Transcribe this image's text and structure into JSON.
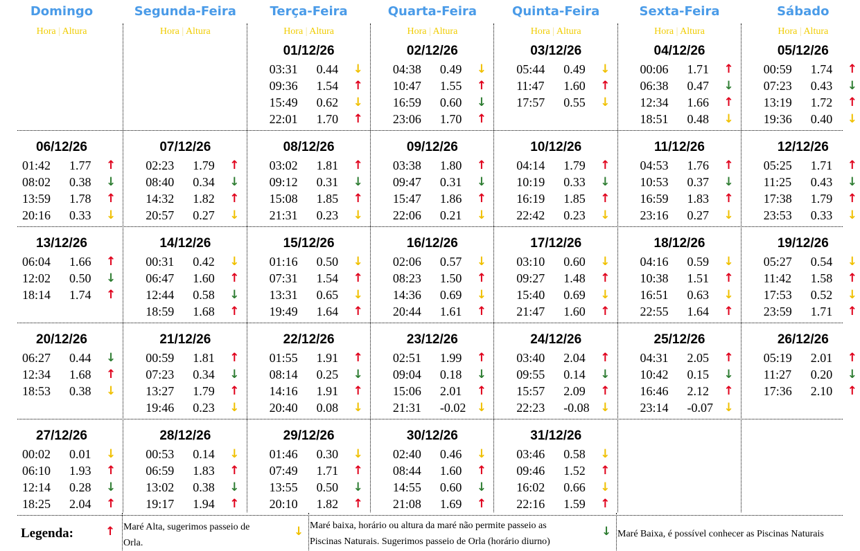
{
  "colors": {
    "header": "#4a9be8",
    "subheader": "#f0cc00",
    "up": "#e0001b",
    "down_yellow": "#f0c000",
    "down_green": "#2e7d32"
  },
  "header": {
    "days": [
      "Domingo",
      "Segunda-Feira",
      "Terça-Feira",
      "Quarta-Feira",
      "Quinta-Feira",
      "Sexta-Feira",
      "Sábado"
    ],
    "hora": "Hora",
    "altura": "Altura",
    "separator": "|"
  },
  "icons": {
    "u": "arrow-up-red-icon",
    "y": "arrow-down-yellow-icon",
    "g": "arrow-down-green-icon"
  },
  "weeks": [
    [
      null,
      null,
      {
        "date": "01/12/26",
        "tides": [
          [
            "03:31",
            "0.44",
            "y"
          ],
          [
            "09:36",
            "1.54",
            "u"
          ],
          [
            "15:49",
            "0.62",
            "y"
          ],
          [
            "22:01",
            "1.70",
            "u"
          ]
        ]
      },
      {
        "date": "02/12/26",
        "tides": [
          [
            "04:38",
            "0.49",
            "y"
          ],
          [
            "10:47",
            "1.55",
            "u"
          ],
          [
            "16:59",
            "0.60",
            "g"
          ],
          [
            "23:06",
            "1.70",
            "u"
          ]
        ]
      },
      {
        "date": "03/12/26",
        "tides": [
          [
            "05:44",
            "0.49",
            "y"
          ],
          [
            "11:47",
            "1.60",
            "u"
          ],
          [
            "17:57",
            "0.55",
            "y"
          ]
        ]
      },
      {
        "date": "04/12/26",
        "tides": [
          [
            "00:06",
            "1.71",
            "u"
          ],
          [
            "06:38",
            "0.47",
            "g"
          ],
          [
            "12:34",
            "1.66",
            "u"
          ],
          [
            "18:51",
            "0.48",
            "y"
          ]
        ]
      },
      {
        "date": "05/12/26",
        "tides": [
          [
            "00:59",
            "1.74",
            "u"
          ],
          [
            "07:23",
            "0.43",
            "g"
          ],
          [
            "13:19",
            "1.72",
            "u"
          ],
          [
            "19:36",
            "0.40",
            "y"
          ]
        ]
      }
    ],
    [
      {
        "date": "06/12/26",
        "tides": [
          [
            "01:42",
            "1.77",
            "u"
          ],
          [
            "08:02",
            "0.38",
            "g"
          ],
          [
            "13:59",
            "1.78",
            "u"
          ],
          [
            "20:16",
            "0.33",
            "y"
          ]
        ]
      },
      {
        "date": "07/12/26",
        "tides": [
          [
            "02:23",
            "1.79",
            "u"
          ],
          [
            "08:40",
            "0.34",
            "g"
          ],
          [
            "14:32",
            "1.82",
            "u"
          ],
          [
            "20:57",
            "0.27",
            "y"
          ]
        ]
      },
      {
        "date": "08/12/26",
        "tides": [
          [
            "03:02",
            "1.81",
            "u"
          ],
          [
            "09:12",
            "0.31",
            "g"
          ],
          [
            "15:08",
            "1.85",
            "u"
          ],
          [
            "21:31",
            "0.23",
            "y"
          ]
        ]
      },
      {
        "date": "09/12/26",
        "tides": [
          [
            "03:38",
            "1.80",
            "u"
          ],
          [
            "09:47",
            "0.31",
            "g"
          ],
          [
            "15:47",
            "1.86",
            "u"
          ],
          [
            "22:06",
            "0.21",
            "y"
          ]
        ]
      },
      {
        "date": "10/12/26",
        "tides": [
          [
            "04:14",
            "1.79",
            "u"
          ],
          [
            "10:19",
            "0.33",
            "g"
          ],
          [
            "16:19",
            "1.85",
            "u"
          ],
          [
            "22:42",
            "0.23",
            "y"
          ]
        ]
      },
      {
        "date": "11/12/26",
        "tides": [
          [
            "04:53",
            "1.76",
            "u"
          ],
          [
            "10:53",
            "0.37",
            "g"
          ],
          [
            "16:59",
            "1.83",
            "u"
          ],
          [
            "23:16",
            "0.27",
            "y"
          ]
        ]
      },
      {
        "date": "12/12/26",
        "tides": [
          [
            "05:25",
            "1.71",
            "u"
          ],
          [
            "11:25",
            "0.43",
            "g"
          ],
          [
            "17:38",
            "1.79",
            "u"
          ],
          [
            "23:53",
            "0.33",
            "y"
          ]
        ]
      }
    ],
    [
      {
        "date": "13/12/26",
        "tides": [
          [
            "06:04",
            "1.66",
            "u"
          ],
          [
            "12:02",
            "0.50",
            "g"
          ],
          [
            "18:14",
            "1.74",
            "u"
          ]
        ]
      },
      {
        "date": "14/12/26",
        "tides": [
          [
            "00:31",
            "0.42",
            "y"
          ],
          [
            "06:47",
            "1.60",
            "u"
          ],
          [
            "12:44",
            "0.58",
            "g"
          ],
          [
            "18:59",
            "1.68",
            "u"
          ]
        ]
      },
      {
        "date": "15/12/26",
        "tides": [
          [
            "01:16",
            "0.50",
            "y"
          ],
          [
            "07:31",
            "1.54",
            "u"
          ],
          [
            "13:31",
            "0.65",
            "y"
          ],
          [
            "19:49",
            "1.64",
            "u"
          ]
        ]
      },
      {
        "date": "16/12/26",
        "tides": [
          [
            "02:06",
            "0.57",
            "y"
          ],
          [
            "08:23",
            "1.50",
            "u"
          ],
          [
            "14:36",
            "0.69",
            "y"
          ],
          [
            "20:44",
            "1.61",
            "u"
          ]
        ]
      },
      {
        "date": "17/12/26",
        "tides": [
          [
            "03:10",
            "0.60",
            "y"
          ],
          [
            "09:27",
            "1.48",
            "u"
          ],
          [
            "15:40",
            "0.69",
            "y"
          ],
          [
            "21:47",
            "1.60",
            "u"
          ]
        ]
      },
      {
        "date": "18/12/26",
        "tides": [
          [
            "04:16",
            "0.59",
            "y"
          ],
          [
            "10:38",
            "1.51",
            "u"
          ],
          [
            "16:51",
            "0.63",
            "y"
          ],
          [
            "22:55",
            "1.64",
            "u"
          ]
        ]
      },
      {
        "date": "19/12/26",
        "tides": [
          [
            "05:27",
            "0.54",
            "y"
          ],
          [
            "11:42",
            "1.58",
            "u"
          ],
          [
            "17:53",
            "0.52",
            "y"
          ],
          [
            "23:59",
            "1.71",
            "u"
          ]
        ]
      }
    ],
    [
      {
        "date": "20/12/26",
        "tides": [
          [
            "06:27",
            "0.44",
            "g"
          ],
          [
            "12:34",
            "1.68",
            "u"
          ],
          [
            "18:53",
            "0.38",
            "y"
          ]
        ]
      },
      {
        "date": "21/12/26",
        "tides": [
          [
            "00:59",
            "1.81",
            "u"
          ],
          [
            "07:23",
            "0.34",
            "g"
          ],
          [
            "13:27",
            "1.79",
            "u"
          ],
          [
            "19:46",
            "0.23",
            "y"
          ]
        ]
      },
      {
        "date": "22/12/26",
        "tides": [
          [
            "01:55",
            "1.91",
            "u"
          ],
          [
            "08:14",
            "0.25",
            "g"
          ],
          [
            "14:16",
            "1.91",
            "u"
          ],
          [
            "20:40",
            "0.08",
            "y"
          ]
        ]
      },
      {
        "date": "23/12/26",
        "tides": [
          [
            "02:51",
            "1.99",
            "u"
          ],
          [
            "09:04",
            "0.18",
            "g"
          ],
          [
            "15:06",
            "2.01",
            "u"
          ],
          [
            "21:31",
            "-0.02",
            "y"
          ]
        ]
      },
      {
        "date": "24/12/26",
        "tides": [
          [
            "03:40",
            "2.04",
            "u"
          ],
          [
            "09:55",
            "0.14",
            "g"
          ],
          [
            "15:57",
            "2.09",
            "u"
          ],
          [
            "22:23",
            "-0.08",
            "y"
          ]
        ]
      },
      {
        "date": "25/12/26",
        "tides": [
          [
            "04:31",
            "2.05",
            "u"
          ],
          [
            "10:42",
            "0.15",
            "g"
          ],
          [
            "16:46",
            "2.12",
            "u"
          ],
          [
            "23:14",
            "-0.07",
            "y"
          ]
        ]
      },
      {
        "date": "26/12/26",
        "tides": [
          [
            "05:19",
            "2.01",
            "u"
          ],
          [
            "11:27",
            "0.20",
            "g"
          ],
          [
            "17:36",
            "2.10",
            "u"
          ]
        ]
      }
    ],
    [
      {
        "date": "27/12/26",
        "tides": [
          [
            "00:02",
            "0.01",
            "y"
          ],
          [
            "06:10",
            "1.93",
            "u"
          ],
          [
            "12:14",
            "0.28",
            "g"
          ],
          [
            "18:25",
            "2.04",
            "u"
          ]
        ]
      },
      {
        "date": "28/12/26",
        "tides": [
          [
            "00:53",
            "0.14",
            "y"
          ],
          [
            "06:59",
            "1.83",
            "u"
          ],
          [
            "13:02",
            "0.38",
            "g"
          ],
          [
            "19:17",
            "1.94",
            "u"
          ]
        ]
      },
      {
        "date": "29/12/26",
        "tides": [
          [
            "01:46",
            "0.30",
            "y"
          ],
          [
            "07:49",
            "1.71",
            "u"
          ],
          [
            "13:55",
            "0.50",
            "g"
          ],
          [
            "20:10",
            "1.82",
            "u"
          ]
        ]
      },
      {
        "date": "30/12/26",
        "tides": [
          [
            "02:40",
            "0.46",
            "y"
          ],
          [
            "08:44",
            "1.60",
            "u"
          ],
          [
            "14:55",
            "0.60",
            "g"
          ],
          [
            "21:08",
            "1.69",
            "u"
          ]
        ]
      },
      {
        "date": "31/12/26",
        "tides": [
          [
            "03:46",
            "0.58",
            "y"
          ],
          [
            "09:46",
            "1.52",
            "u"
          ],
          [
            "16:02",
            "0.66",
            "y"
          ],
          [
            "22:16",
            "1.59",
            "u"
          ]
        ]
      },
      null,
      null
    ]
  ],
  "legend": {
    "title": "Legenda:",
    "items": [
      {
        "icon": "u",
        "text_line1": "Maré Alta, sugerimos passeio de",
        "text_line2": "Orla."
      },
      {
        "icon": "y",
        "text_line1": "Maré baixa, horário ou altura da maré não permite passeio as",
        "text_line2": "Piscinas Naturais. Sugerimos passeio de Orla (horário diurno)"
      },
      {
        "icon": "g",
        "text_line1": "Maré Baixa, é possível conhecer as Piscinas Naturais",
        "text_line2": ""
      }
    ]
  }
}
